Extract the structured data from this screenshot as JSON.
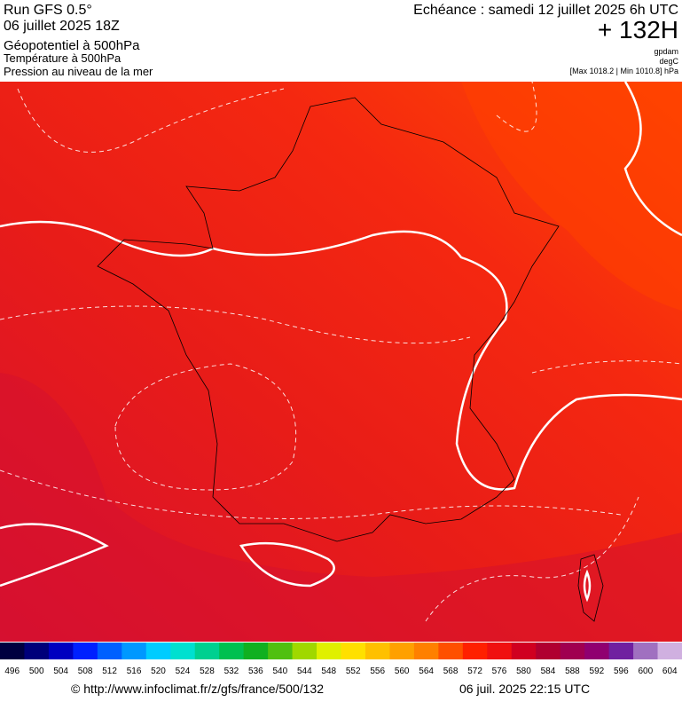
{
  "header": {
    "run": "Run GFS 0.5°",
    "date": "06 juillet 2025 18Z",
    "field1": "Géopotentiel à 500hPa",
    "field2": "Température à 500hPa",
    "field3": "Pression au niveau de la mer",
    "valid": "Echéance : samedi 12 juillet 2025 6h UTC",
    "lead": "+ 132H",
    "unit1": "gpdam",
    "unit2": "degC",
    "pressure_range": "[Max 1018.2 | Min 1010.8] hPa"
  },
  "legend": {
    "levels": [
      496,
      500,
      504,
      508,
      512,
      516,
      520,
      524,
      528,
      532,
      536,
      540,
      544,
      548,
      552,
      556,
      560,
      564,
      568,
      572,
      576,
      580,
      584,
      588,
      592,
      596,
      600,
      604
    ],
    "colors": [
      "#000040",
      "#00007a",
      "#0000c0",
      "#0020ff",
      "#0060ff",
      "#0098ff",
      "#00ccff",
      "#00e0d0",
      "#00d090",
      "#00c050",
      "#10b020",
      "#50c010",
      "#a0d800",
      "#e0f000",
      "#ffe000",
      "#ffc000",
      "#ffa000",
      "#ff8000",
      "#ff5000",
      "#ff2000",
      "#f01010",
      "#d00020",
      "#b00030",
      "#a00050",
      "#900070",
      "#7020a0",
      "#a070c0",
      "#d0b0e0"
    ]
  },
  "footer": {
    "url": "© http://www.infoclimat.fr/z/gfs/france/500/132",
    "stamp": "06 juil. 2025 22:15 UTC"
  }
}
